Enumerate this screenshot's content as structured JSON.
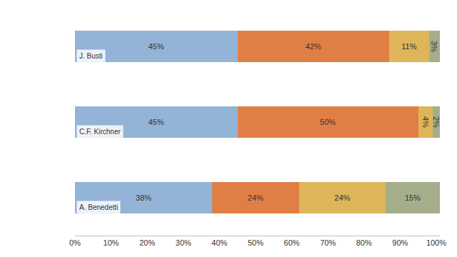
{
  "chart_data": {
    "type": "bar",
    "orientation": "horizontal",
    "stacked": true,
    "data_labels": true,
    "tick_labels": "x",
    "grid": false,
    "categories": [
      "J. Busti",
      "C.F. Kirchner",
      "A. Benedetti"
    ],
    "series": [
      {
        "color": "#93b3d7",
        "values": [
          45,
          45,
          38
        ],
        "value_labels": [
          "45%",
          "45%",
          "38%"
        ]
      },
      {
        "color": "#e07f45",
        "values": [
          42,
          50,
          24
        ],
        "value_labels": [
          "42%",
          "50%",
          "24%"
        ]
      },
      {
        "color": "#dfb55a",
        "values": [
          11,
          4,
          24
        ],
        "value_labels": [
          "11%",
          "4%",
          "24%"
        ]
      },
      {
        "color": "#a5ae8b",
        "values": [
          3,
          2,
          15
        ],
        "value_labels": [
          "3%",
          "2%",
          "15%"
        ]
      }
    ],
    "xlim": [
      0,
      101
    ],
    "xticks": [
      {
        "value": 0,
        "label": "0%"
      },
      {
        "value": 10,
        "label": "10%"
      },
      {
        "value": 20,
        "label": "20%"
      },
      {
        "value": 30,
        "label": "30%"
      },
      {
        "value": 40,
        "label": "40%"
      },
      {
        "value": 50,
        "label": "50%"
      },
      {
        "value": 60,
        "label": "60%"
      },
      {
        "value": 70,
        "label": "70%"
      },
      {
        "value": 80,
        "label": "80%"
      },
      {
        "value": 90,
        "label": "90%"
      },
      {
        "value": 100,
        "label": "100%"
      }
    ]
  }
}
